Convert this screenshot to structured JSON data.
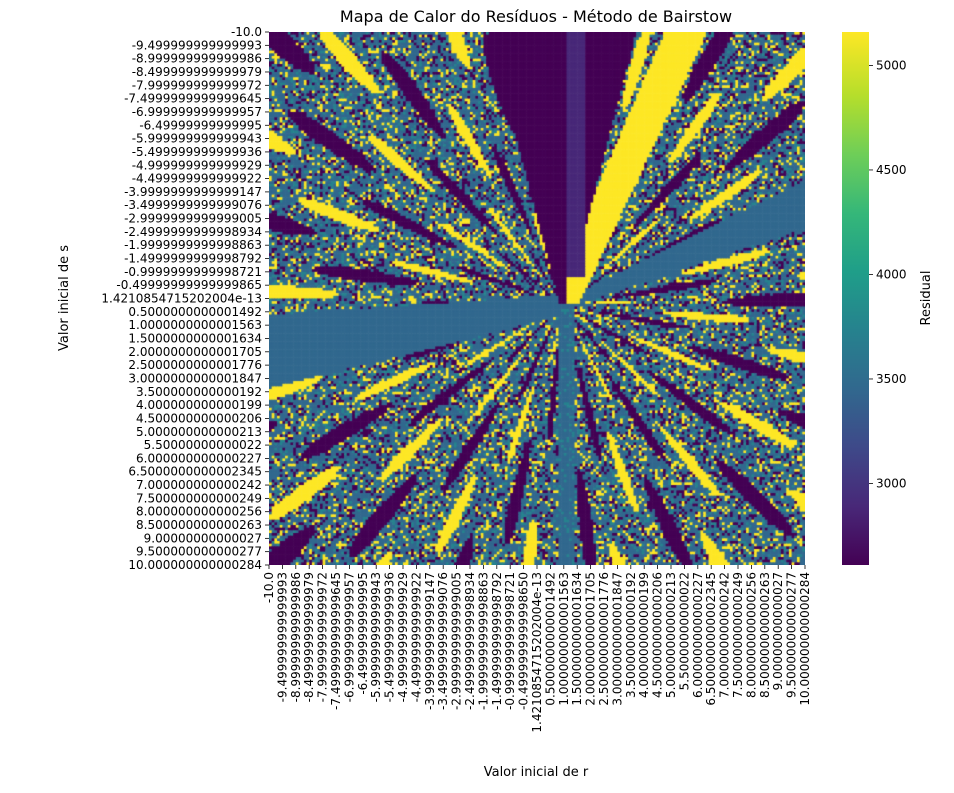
{
  "chart_data": {
    "type": "heatmap",
    "title": "Mapa de Calor do Resíduos - Método de Bairstow",
    "xlabel": "Valor inicial de r",
    "ylabel": "Valor inicial de s",
    "x_tick_labels": [
      "-10.0",
      "-9.499999999999993",
      "-8.999999999999986",
      "-8.499999999999979",
      "-7.999999999999972",
      "-7.4999999999999645",
      "-6.999999999999957",
      "-6.49999999999995",
      "-5.999999999999943",
      "-5.499999999999936",
      "-4.999999999999929",
      "-4.499999999999922",
      "-3.9999999999999147",
      "-3.4999999999999076",
      "-2.9999999999999005",
      "-2.4999999999998934",
      "-1.9999999999998863",
      "-1.4999999999998792",
      "-0.9999999999998721",
      "-0.4999999999998650",
      "1.4210854715202004e-13",
      "0.5000000000001492",
      "1.0000000000001563",
      "1.5000000000001634",
      "2.0000000000001705",
      "2.5000000000001776",
      "3.0000000000001847",
      "3.500000000000192",
      "4.000000000000199",
      "4.500000000000206",
      "5.000000000000213",
      "5.50000000000022",
      "6.000000000000227",
      "6.5000000000002345",
      "7.000000000000242",
      "7.500000000000249",
      "8.000000000000256",
      "8.500000000000263",
      "9.00000000000027",
      "9.500000000000277",
      "10.000000000000284"
    ],
    "y_tick_labels": [
      "-10.0",
      "-9.499999999999993",
      "-8.999999999999986",
      "-8.499999999999979",
      "-7.999999999999972",
      "-7.4999999999999645",
      "-6.999999999999957",
      "-6.49999999999995",
      "-5.999999999999943",
      "-5.499999999999936",
      "-4.999999999999929",
      "-4.499999999999922",
      "-3.9999999999999147",
      "-3.4999999999999076",
      "-2.9999999999999005",
      "-2.4999999999998934",
      "-1.9999999999998863",
      "-1.4999999999998792",
      "-0.9999999999998721",
      "-0.49999999999999865",
      "1.4210854715202004e-13",
      "0.5000000000001492",
      "1.0000000000001563",
      "1.5000000000001634",
      "2.0000000000001705",
      "2.5000000000001776",
      "3.0000000000001847",
      "3.500000000000192",
      "4.000000000000199",
      "4.500000000000206",
      "5.000000000000213",
      "5.50000000000022",
      "6.000000000000227",
      "6.5000000000002345",
      "7.000000000000242",
      "7.500000000000249",
      "8.000000000000256",
      "8.500000000000263",
      "9.00000000000027",
      "9.500000000000277",
      "10.000000000000284"
    ],
    "x_range": [
      -10.0,
      10.0
    ],
    "y_range": [
      -10.0,
      10.0
    ],
    "colorbar": {
      "label": "Residual",
      "colormap": "viridis",
      "range": [
        2610,
        5160
      ],
      "ticks": [
        3000,
        3500,
        4000,
        4500,
        5000
      ],
      "colors": [
        "#440154",
        "#482878",
        "#3e4989",
        "#31688e",
        "#26828e",
        "#1f9e89",
        "#35b779",
        "#6ece58",
        "#b5de2b",
        "#fde725"
      ]
    },
    "dominant_values": {
      "low_dark": 2650,
      "mid_blue": 3550,
      "high_yellow": 5100
    },
    "grid": false,
    "legend": "colorbar-right"
  }
}
